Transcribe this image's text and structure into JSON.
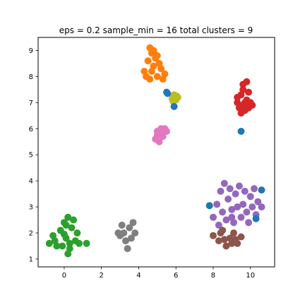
{
  "chart_data": {
    "type": "scatter",
    "title": "eps = 0.2 sample_min = 16 total clusters = 9",
    "xlabel": "",
    "ylabel": "",
    "xlim": [
      -1.4,
      11.3
    ],
    "ylim": [
      0.7,
      9.5
    ],
    "xticks": [
      0,
      2,
      4,
      6,
      8,
      10
    ],
    "yticks": [
      1,
      2,
      3,
      4,
      5,
      6,
      7,
      8,
      9
    ],
    "xtick_labels": [
      "0",
      "2",
      "4",
      "6",
      "8",
      "10"
    ],
    "ytick_labels": [
      "1",
      "2",
      "3",
      "4",
      "5",
      "6",
      "7",
      "8",
      "9"
    ],
    "grid": false,
    "legend": false,
    "series": [
      {
        "color": "#ff7f0e",
        "points": [
          [
            4.3,
            8.2
          ],
          [
            4.5,
            8.6
          ],
          [
            4.6,
            9.1
          ],
          [
            4.7,
            8.9
          ],
          [
            4.8,
            8.4
          ],
          [
            5.0,
            8.0
          ],
          [
            5.2,
            8.3
          ],
          [
            4.9,
            8.7
          ],
          [
            5.4,
            8.1
          ],
          [
            4.6,
            7.9
          ],
          [
            5.1,
            8.5
          ],
          [
            4.8,
            9.0
          ],
          [
            5.3,
            7.9
          ],
          [
            4.4,
            8.0
          ],
          [
            4.7,
            8.2
          ],
          [
            5.0,
            8.8
          ]
        ]
      },
      {
        "color": "#d62728",
        "points": [
          [
            9.3,
            7.0
          ],
          [
            9.5,
            7.3
          ],
          [
            9.6,
            7.7
          ],
          [
            9.8,
            7.1
          ],
          [
            9.7,
            6.7
          ],
          [
            10.0,
            7.0
          ],
          [
            9.4,
            6.8
          ],
          [
            9.6,
            7.5
          ],
          [
            9.9,
            7.4
          ],
          [
            9.5,
            6.6
          ],
          [
            9.8,
            7.8
          ],
          [
            10.1,
            6.9
          ],
          [
            9.3,
            7.2
          ],
          [
            9.7,
            7.0
          ],
          [
            9.6,
            6.9
          ],
          [
            9.9,
            6.8
          ]
        ]
      },
      {
        "color": "#bcbd22",
        "points": [
          [
            5.8,
            7.15
          ],
          [
            5.9,
            7.3
          ],
          [
            6.0,
            7.1
          ],
          [
            6.1,
            7.2
          ],
          [
            5.85,
            7.05
          ],
          [
            6.05,
            7.25
          ]
        ]
      },
      {
        "color": "#e377c2",
        "points": [
          [
            4.9,
            5.6
          ],
          [
            5.0,
            5.9
          ],
          [
            5.2,
            6.0
          ],
          [
            5.3,
            5.7
          ],
          [
            5.1,
            5.5
          ],
          [
            5.5,
            5.9
          ],
          [
            5.4,
            6.0
          ],
          [
            5.0,
            5.75
          ],
          [
            5.2,
            5.8
          ]
        ]
      },
      {
        "color": "#9467bd",
        "points": [
          [
            8.2,
            3.1
          ],
          [
            8.4,
            3.6
          ],
          [
            8.6,
            3.9
          ],
          [
            8.8,
            3.3
          ],
          [
            9.0,
            2.9
          ],
          [
            9.2,
            3.5
          ],
          [
            9.4,
            3.8
          ],
          [
            9.6,
            3.1
          ],
          [
            9.8,
            2.8
          ],
          [
            10.0,
            3.4
          ],
          [
            10.2,
            3.7
          ],
          [
            10.4,
            3.2
          ],
          [
            10.6,
            3.0
          ],
          [
            8.0,
            2.6
          ],
          [
            8.3,
            2.3
          ],
          [
            8.7,
            2.5
          ],
          [
            9.1,
            2.4
          ],
          [
            9.5,
            2.6
          ],
          [
            9.9,
            2.4
          ],
          [
            10.3,
            2.7
          ],
          [
            8.5,
            2.8
          ],
          [
            9.3,
            3.0
          ],
          [
            9.7,
            3.6
          ],
          [
            10.1,
            3.0
          ],
          [
            8.9,
            3.7
          ],
          [
            9.0,
            2.6
          ]
        ]
      },
      {
        "color": "#8c564b",
        "points": [
          [
            8.0,
            1.9
          ],
          [
            8.3,
            1.7
          ],
          [
            8.5,
            2.1
          ],
          [
            8.7,
            1.5
          ],
          [
            8.9,
            1.8
          ],
          [
            9.1,
            2.0
          ],
          [
            9.3,
            1.6
          ],
          [
            9.5,
            1.85
          ],
          [
            8.6,
            1.75
          ],
          [
            9.0,
            1.6
          ],
          [
            8.4,
            2.0
          ],
          [
            9.2,
            1.75
          ]
        ]
      },
      {
        "color": "#2ca02c",
        "points": [
          [
            -0.8,
            1.6
          ],
          [
            -0.6,
            1.9
          ],
          [
            -0.4,
            1.5
          ],
          [
            -0.2,
            2.1
          ],
          [
            0.0,
            2.4
          ],
          [
            0.1,
            1.8
          ],
          [
            0.2,
            2.6
          ],
          [
            0.3,
            1.4
          ],
          [
            0.4,
            2.2
          ],
          [
            0.6,
            1.7
          ],
          [
            0.7,
            2.0
          ],
          [
            0.2,
            1.2
          ],
          [
            -0.1,
            1.5
          ],
          [
            0.5,
            2.5
          ],
          [
            -0.5,
            1.7
          ],
          [
            0.0,
            1.95
          ],
          [
            0.3,
            1.6
          ],
          [
            0.1,
            2.3
          ],
          [
            0.8,
            1.6
          ],
          [
            1.2,
            1.6
          ]
        ]
      },
      {
        "color": "#7f7f7f",
        "points": [
          [
            2.9,
            2.0
          ],
          [
            3.1,
            2.3
          ],
          [
            3.3,
            1.7
          ],
          [
            3.5,
            2.2
          ],
          [
            3.6,
            1.8
          ],
          [
            3.8,
            2.0
          ],
          [
            3.4,
            1.4
          ],
          [
            3.2,
            2.0
          ],
          [
            3.7,
            2.4
          ],
          [
            3.0,
            1.9
          ]
        ]
      },
      {
        "color": "#1f77b4",
        "points": [
          [
            5.5,
            7.4
          ],
          [
            5.55,
            7.35
          ],
          [
            5.9,
            6.85
          ],
          [
            9.5,
            5.9
          ],
          [
            7.8,
            3.05
          ],
          [
            10.6,
            3.65
          ],
          [
            10.3,
            2.55
          ]
        ]
      }
    ]
  }
}
